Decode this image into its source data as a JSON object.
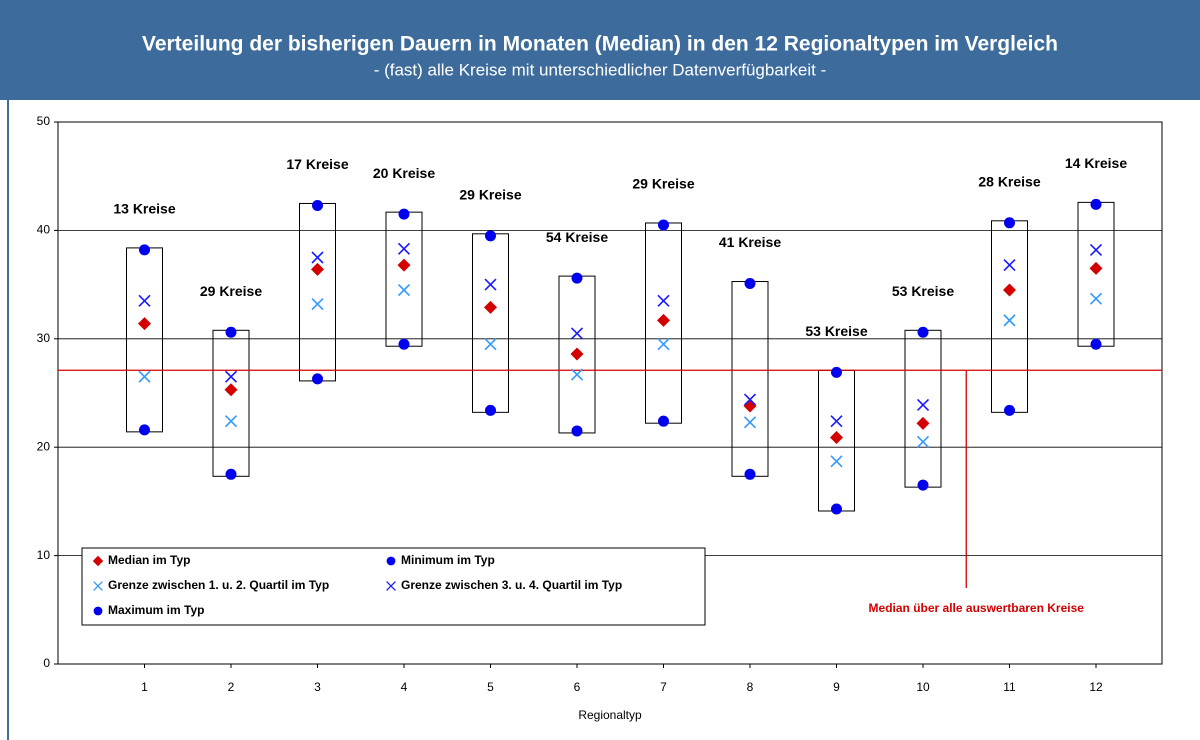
{
  "chart_data": {
    "type": "range",
    "title": "Verteilung der bisherigen Dauern in Monaten (Median) in den 12 Regionaltypen im Vergleich",
    "subtitle": "- (fast) alle Kreise mit unterschiedlicher Datenverfügbarkeit -",
    "x_label": "Regionaltyp",
    "categories": [
      "1",
      "2",
      "3",
      "4",
      "5",
      "6",
      "7",
      "8",
      "9",
      "10",
      "11",
      "12"
    ],
    "box_labels": [
      "13 Kreise",
      "29 Kreise",
      "17 Kreise",
      "20 Kreise",
      "29 Kreise",
      "54 Kreise",
      "29 Kreise",
      "41 Kreise",
      "53 Kreise",
      "53 Kreise",
      "28 Kreise",
      "14 Kreise"
    ],
    "series": [
      {
        "name": "Median im Typ",
        "color": "#d40000",
        "marker": "diamond",
        "values": [
          31.4,
          25.3,
          36.4,
          36.8,
          32.9,
          28.6,
          31.7,
          23.8,
          20.9,
          22.2,
          34.5,
          36.5
        ]
      },
      {
        "name": "Minimum im Typ",
        "color": "#0000ee",
        "marker": "circle",
        "values": [
          21.6,
          17.5,
          26.3,
          29.5,
          23.4,
          21.5,
          22.4,
          17.5,
          14.3,
          16.5,
          23.4,
          29.5
        ]
      },
      {
        "name": "Grenze zwischen 1. u. 2. Quartil im Typ",
        "color": "#3399ff",
        "marker": "x",
        "values": [
          26.5,
          22.4,
          33.2,
          34.5,
          29.5,
          26.7,
          29.5,
          22.3,
          18.7,
          20.5,
          31.7,
          33.7
        ]
      },
      {
        "name": "Grenze zwischen 3. u. 4. Quartil im Typ",
        "color": "#1a1aff",
        "marker": "x",
        "values": [
          33.5,
          26.5,
          37.5,
          38.3,
          35.0,
          30.5,
          33.5,
          24.4,
          22.4,
          23.9,
          36.8,
          38.2
        ]
      },
      {
        "name": "Maximum im Typ",
        "color": "#0000ee",
        "marker": "circle",
        "values": [
          38.2,
          30.6,
          42.3,
          41.5,
          39.5,
          35.6,
          40.5,
          35.1,
          26.9,
          30.6,
          40.7,
          42.4
        ]
      }
    ],
    "reference_line": {
      "value": 27.1,
      "label": "Median über alle auswertbaren Kreise",
      "color": "#d40000"
    },
    "ylim": [
      0,
      50
    ],
    "yticks": [
      0,
      10,
      20,
      30,
      40,
      50
    ],
    "grid": true
  }
}
